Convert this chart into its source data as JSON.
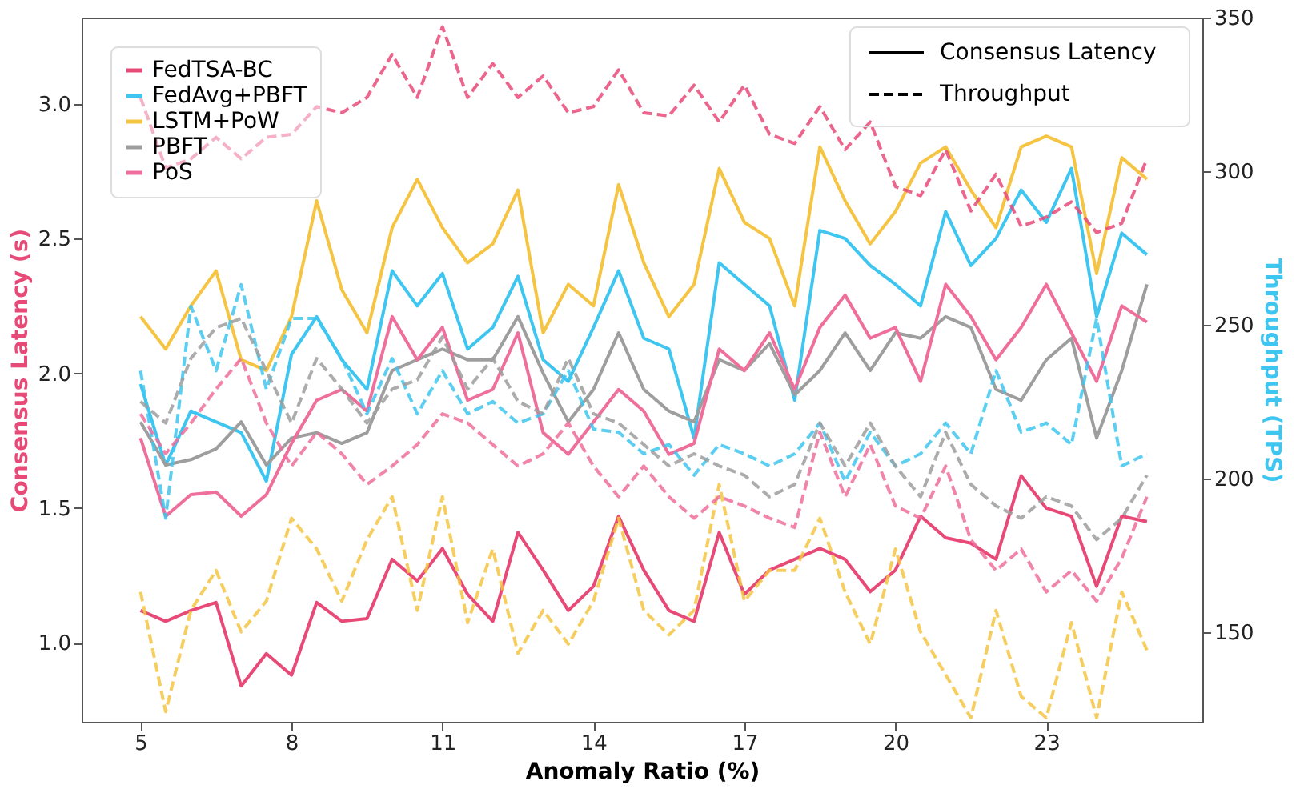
{
  "chart_data": {
    "type": "line",
    "xlabel": "Anomaly Ratio (%)",
    "ylabel": "Consensus Latency (s)",
    "y2label": "Throughput (TPS)",
    "x": [
      5,
      5.5,
      6,
      6.5,
      7,
      7.5,
      8,
      8.5,
      9,
      9.5,
      10,
      10.5,
      11,
      11.5,
      12,
      12.5,
      13,
      13.5,
      14,
      14.5,
      15,
      15.5,
      16,
      16.5,
      17,
      17.5,
      18,
      18.5,
      19,
      19.5,
      20,
      20.5,
      21,
      21.5,
      22,
      22.5,
      23,
      23.5,
      24,
      24.5,
      25
    ],
    "series": [
      {
        "name": "FedTSA-BC",
        "color": "#e84a78",
        "line_style": "solid",
        "values": [
          1.12,
          1.08,
          1.12,
          1.15,
          0.84,
          0.96,
          0.88,
          1.15,
          1.08,
          1.09,
          1.31,
          1.23,
          1.35,
          1.18,
          1.08,
          1.41,
          1.27,
          1.12,
          1.21,
          1.47,
          1.27,
          1.12,
          1.08,
          1.41,
          1.18,
          1.27,
          1.31,
          1.35,
          1.31,
          1.19,
          1.27,
          1.47,
          1.39,
          1.37,
          1.31,
          1.62,
          1.5,
          1.47,
          1.21,
          1.47,
          1.45
        ]
      },
      {
        "name": "FedAvg+PBFT",
        "color": "#3ec6f0",
        "line_style": "solid",
        "values": [
          1.96,
          1.66,
          1.86,
          1.82,
          1.78,
          1.6,
          2.07,
          2.21,
          2.05,
          1.94,
          2.38,
          2.25,
          2.37,
          2.09,
          2.17,
          2.36,
          2.05,
          1.97,
          2.17,
          2.38,
          2.13,
          2.09,
          1.76,
          2.41,
          2.33,
          2.25,
          1.9,
          2.53,
          2.5,
          2.4,
          2.33,
          2.25,
          2.6,
          2.4,
          2.5,
          2.68,
          2.56,
          2.76,
          2.21,
          2.52,
          2.44
        ]
      },
      {
        "name": "LSTM+PoW",
        "color": "#f5c443",
        "line_style": "solid",
        "values": [
          2.21,
          2.09,
          2.25,
          2.38,
          2.05,
          2.01,
          2.21,
          2.64,
          2.31,
          2.15,
          2.54,
          2.72,
          2.54,
          2.41,
          2.48,
          2.68,
          2.15,
          2.33,
          2.25,
          2.7,
          2.41,
          2.21,
          2.33,
          2.76,
          2.56,
          2.5,
          2.25,
          2.84,
          2.64,
          2.48,
          2.6,
          2.78,
          2.84,
          2.68,
          2.54,
          2.84,
          2.88,
          2.84,
          2.37,
          2.8,
          2.72
        ]
      },
      {
        "name": "PBFT",
        "color": "#9e9e9e",
        "line_style": "solid",
        "values": [
          1.82,
          1.66,
          1.68,
          1.72,
          1.82,
          1.66,
          1.76,
          1.78,
          1.74,
          1.78,
          2.01,
          2.05,
          2.09,
          2.05,
          2.05,
          2.21,
          2.0,
          1.82,
          1.94,
          2.15,
          1.94,
          1.86,
          1.82,
          2.05,
          2.01,
          2.11,
          1.92,
          2.01,
          2.15,
          2.01,
          2.15,
          2.13,
          2.21,
          2.17,
          1.94,
          1.9,
          2.05,
          2.13,
          1.76,
          2.01,
          2.33
        ]
      },
      {
        "name": "PoS",
        "color": "#ef6f9c",
        "line_style": "solid",
        "values": [
          1.76,
          1.47,
          1.55,
          1.56,
          1.47,
          1.55,
          1.74,
          1.9,
          1.94,
          1.86,
          2.21,
          2.05,
          2.17,
          1.9,
          1.94,
          2.15,
          1.78,
          1.7,
          1.82,
          1.94,
          1.86,
          1.7,
          1.74,
          2.09,
          2.01,
          2.15,
          1.94,
          2.17,
          2.29,
          2.13,
          2.17,
          1.97,
          2.33,
          2.21,
          2.05,
          2.17,
          2.33,
          2.15,
          1.97,
          2.25,
          2.19
        ]
      },
      {
        "color": "#e84a78",
        "line_style": "dashed",
        "axis": "y2",
        "values": [
          324,
          301,
          304,
          311,
          304,
          311,
          312,
          321,
          319,
          324,
          338,
          324,
          347,
          324,
          335,
          324,
          331,
          319,
          321,
          333,
          319,
          318,
          328,
          316,
          328,
          312,
          309,
          321,
          307,
          316,
          295,
          292,
          307,
          287,
          299,
          282,
          285,
          290,
          280,
          283,
          304
        ]
      },
      {
        "color": "#3ec6f0",
        "line_style": "dashed",
        "axis": "y2",
        "values": [
          235,
          187,
          256,
          235,
          263,
          229,
          252,
          252,
          239,
          221,
          239,
          221,
          235,
          221,
          225,
          218,
          221,
          235,
          216,
          215,
          208,
          211,
          201,
          211,
          208,
          204,
          208,
          218,
          199,
          215,
          204,
          208,
          218,
          208,
          235,
          215,
          218,
          211,
          252,
          204,
          208
        ]
      },
      {
        "color": "#f5c443",
        "line_style": "dashed",
        "axis": "y2",
        "values": [
          163,
          124,
          157,
          170,
          150,
          160,
          187,
          177,
          160,
          180,
          194,
          157,
          194,
          153,
          177,
          143,
          157,
          146,
          160,
          187,
          157,
          149,
          157,
          198,
          160,
          170,
          170,
          187,
          163,
          146,
          177,
          150,
          136,
          122,
          157,
          129,
          122,
          153,
          122,
          163,
          144
        ]
      },
      {
        "color": "#9e9e9e",
        "line_style": "dashed",
        "axis": "y2",
        "values": [
          225,
          218,
          239,
          249,
          252,
          235,
          218,
          239,
          229,
          218,
          229,
          232,
          246,
          229,
          239,
          225,
          221,
          239,
          221,
          218,
          211,
          204,
          208,
          204,
          201,
          194,
          198,
          218,
          204,
          218,
          204,
          194,
          215,
          198,
          191,
          187,
          194,
          191,
          180,
          187,
          201
        ]
      },
      {
        "color": "#ef6f9c",
        "line_style": "dashed",
        "axis": "y2",
        "values": [
          221,
          208,
          218,
          229,
          239,
          218,
          204,
          215,
          208,
          198,
          204,
          211,
          221,
          218,
          211,
          204,
          208,
          218,
          204,
          194,
          204,
          194,
          187,
          194,
          191,
          187,
          184,
          215,
          194,
          211,
          191,
          187,
          204,
          180,
          170,
          177,
          163,
          170,
          160,
          174,
          194
        ]
      }
    ],
    "xlim": [
      3.83,
      26.1
    ],
    "xticks": [
      5,
      8,
      11,
      14,
      17,
      20,
      23
    ],
    "ylim": [
      0.707,
      3.32
    ],
    "yticks": [
      {
        "value": 1,
        "label": "1.0"
      },
      {
        "value": 1.5,
        "label": "1.5"
      },
      {
        "value": 2,
        "label": "2.0"
      },
      {
        "value": 2.5,
        "label": "2.5"
      },
      {
        "value": 3,
        "label": "3.0"
      }
    ],
    "y2lim": [
      120.7,
      350
    ],
    "y2ticks": [
      150,
      200,
      250,
      300,
      350
    ],
    "annotations": [
      "Consensus Latency",
      "Throughput"
    ],
    "legend": "top left",
    "grid": false
  }
}
